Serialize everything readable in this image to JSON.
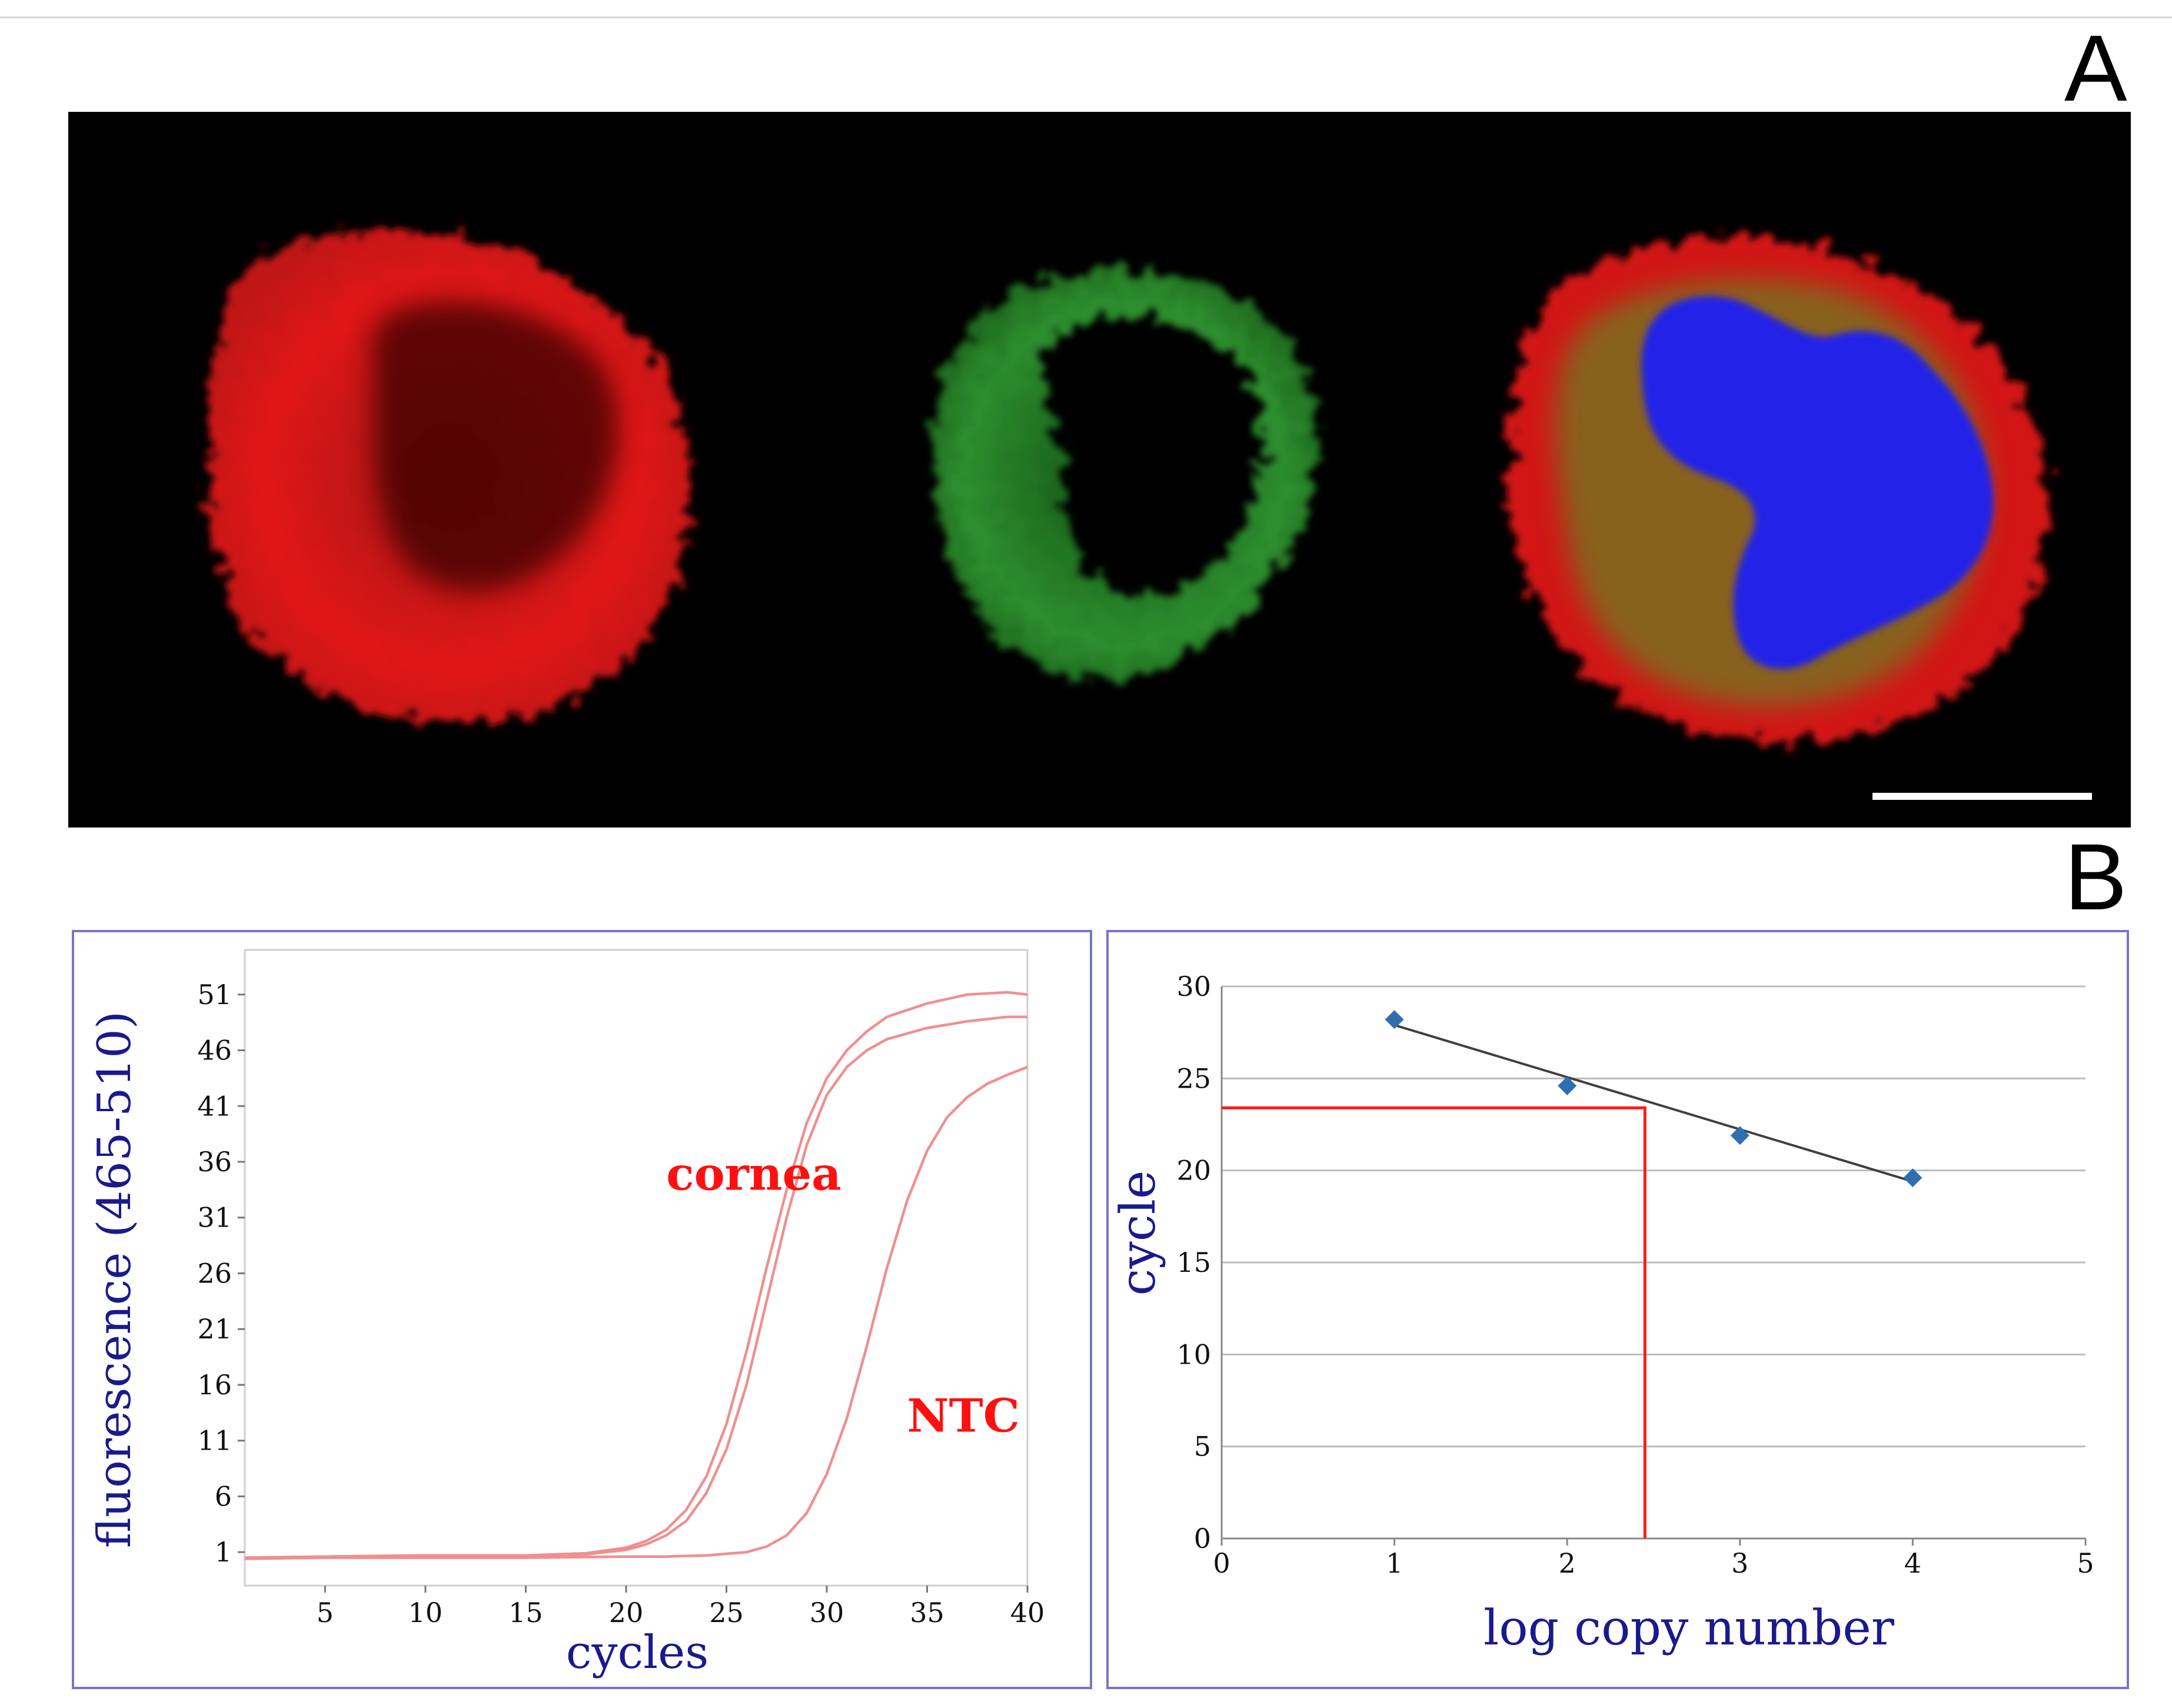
{
  "panel_labels": {
    "a": "A",
    "b": "B"
  },
  "colors": {
    "pcr_curve": "#f08f8f",
    "annotation": "#ff1010",
    "axis_title": "#1a1a8c",
    "frame_border": "#7a74c4",
    "scatter_point": "#2f6fb0",
    "trendline": "#404040",
    "guide_line": "#ff1a1a",
    "gridline": "#bdbdbd"
  },
  "microscopy": {
    "cells": [
      {
        "channel": "red",
        "description": "red-stained cell"
      },
      {
        "channel": "green",
        "description": "green-stained cell"
      },
      {
        "channel": "merge",
        "description": "merged red/green with blue nucleus"
      }
    ],
    "scale_bar": true
  },
  "chart_data": [
    {
      "type": "line",
      "xlabel": "cycles",
      "ylabel": "fluorescence (465-510)",
      "xlim": [
        1,
        40
      ],
      "ylim": [
        -2,
        55
      ],
      "x_ticks": [
        5,
        10,
        15,
        20,
        25,
        30,
        35,
        40
      ],
      "y_ticks": [
        1,
        6,
        11,
        16,
        21,
        26,
        31,
        36,
        41,
        46,
        51
      ],
      "grid": false,
      "annotations": [
        {
          "text": "cornea",
          "x": 22,
          "y": 33.5
        },
        {
          "text": "NTC",
          "x": 34,
          "y": 11.8
        }
      ],
      "series": [
        {
          "x": [
            1,
            5,
            10,
            15,
            18,
            20,
            21,
            22,
            23,
            24,
            25,
            26,
            27,
            28,
            29,
            30,
            31,
            32,
            33,
            35,
            37,
            39,
            40
          ],
          "y": [
            0.5,
            0.6,
            0.7,
            0.7,
            0.9,
            1.4,
            2.0,
            3.0,
            4.8,
            7.8,
            12.5,
            19.0,
            26.5,
            33.5,
            39.5,
            43.5,
            46.0,
            47.7,
            49.0,
            50.2,
            51.0,
            51.2,
            51.0
          ]
        },
        {
          "x": [
            1,
            5,
            10,
            15,
            18,
            20,
            21,
            22,
            23,
            24,
            25,
            26,
            27,
            28,
            29,
            30,
            31,
            32,
            33,
            35,
            37,
            39,
            40
          ],
          "y": [
            0.5,
            0.6,
            0.7,
            0.7,
            0.8,
            1.2,
            1.7,
            2.5,
            3.8,
            6.3,
            10.2,
            16.0,
            23.5,
            31.0,
            37.5,
            42.0,
            44.5,
            46.0,
            47.0,
            48.0,
            48.6,
            49.0,
            49.0
          ]
        },
        {
          "x": [
            1,
            5,
            10,
            15,
            20,
            22,
            24,
            26,
            27,
            28,
            29,
            30,
            31,
            32,
            33,
            34,
            35,
            36,
            37,
            38,
            39,
            40
          ],
          "y": [
            0.4,
            0.5,
            0.5,
            0.5,
            0.6,
            0.6,
            0.7,
            1.0,
            1.5,
            2.5,
            4.5,
            8.0,
            13.0,
            19.5,
            26.5,
            32.5,
            37.0,
            40.0,
            41.8,
            43.0,
            43.8,
            44.5
          ]
        }
      ]
    },
    {
      "type": "scatter",
      "xlabel": "log copy number",
      "ylabel": "cycle",
      "xlim": [
        0,
        5
      ],
      "ylim": [
        0,
        30
      ],
      "x_ticks": [
        0,
        1,
        2,
        3,
        4,
        5
      ],
      "y_ticks": [
        0,
        5,
        10,
        15,
        20,
        25,
        30
      ],
      "grid": true,
      "points": [
        {
          "x": 1,
          "y": 28.2
        },
        {
          "x": 2,
          "y": 24.6
        },
        {
          "x": 3,
          "y": 21.9
        },
        {
          "x": 4,
          "y": 19.6
        }
      ],
      "trendline": {
        "x": [
          1,
          4
        ],
        "y": [
          27.9,
          19.4
        ]
      },
      "guide": {
        "x": 2.45,
        "y": 23.4
      }
    }
  ]
}
